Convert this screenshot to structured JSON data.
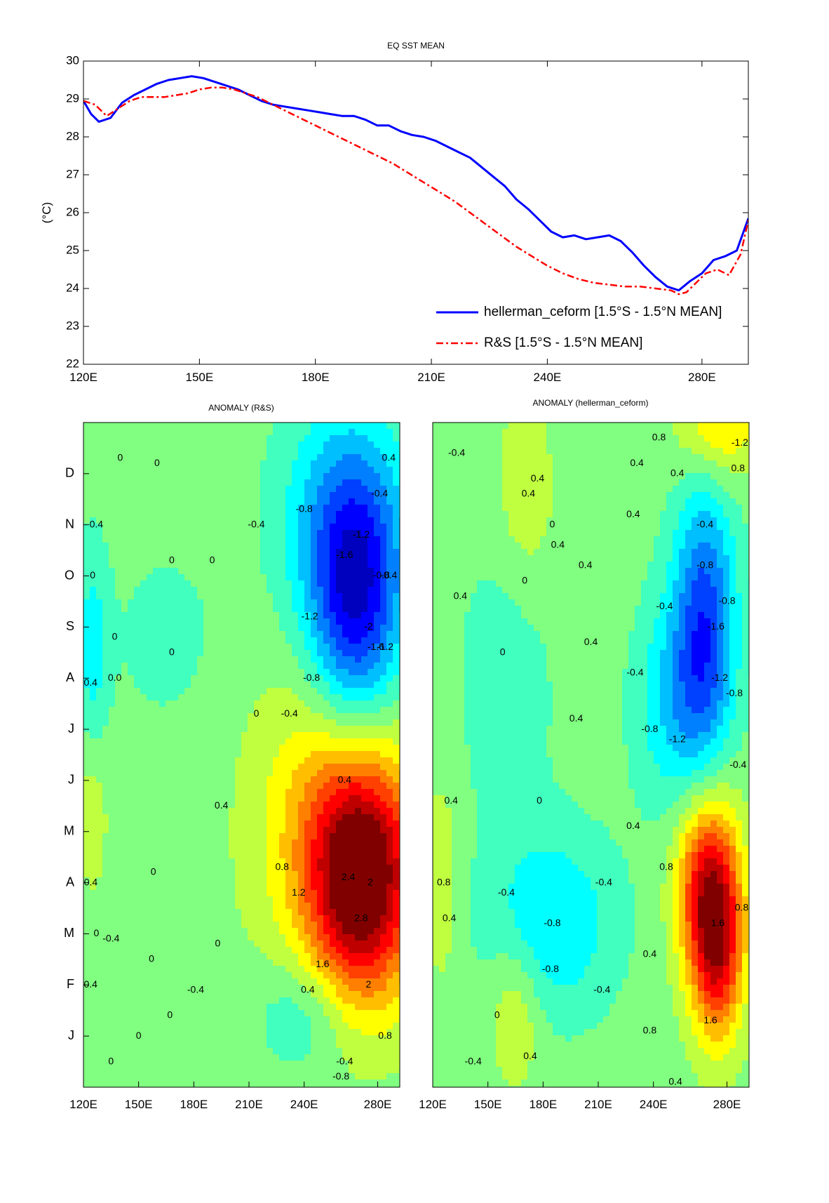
{
  "chart_data": [
    {
      "type": "line",
      "title": "EQ SST MEAN",
      "ylabel": "(°C)",
      "xlabel": "",
      "xlim": [
        120,
        292
      ],
      "ylim": [
        22,
        30
      ],
      "x_ticks": [
        120,
        150,
        180,
        210,
        240,
        280
      ],
      "x_tick_labels": [
        "120E",
        "150E",
        "180E",
        "210E",
        "240E",
        "280E"
      ],
      "y_ticks": [
        22,
        23,
        24,
        25,
        26,
        27,
        28,
        29,
        30
      ],
      "y_tick_labels": [
        "22",
        "23",
        "24",
        "25",
        "26",
        "27",
        "28",
        "29",
        "30"
      ],
      "legend_position": "bottom-right",
      "series": [
        {
          "name": "hellerman_ceform [1.5°S - 1.5°N MEAN]",
          "color": "#0000ff",
          "style": "solid",
          "x": [
            120,
            122,
            124,
            127,
            130,
            133,
            136,
            139,
            142,
            145,
            148,
            151,
            154,
            157,
            160,
            163,
            166,
            169,
            172,
            175,
            178,
            181,
            184,
            187,
            190,
            193,
            196,
            199,
            202,
            205,
            208,
            211,
            214,
            217,
            220,
            223,
            226,
            229,
            232,
            235,
            238,
            241,
            244,
            247,
            250,
            253,
            256,
            259,
            262,
            265,
            268,
            271,
            274,
            277,
            280,
            283,
            286,
            289,
            292
          ],
          "y": [
            28.95,
            28.6,
            28.4,
            28.5,
            28.9,
            29.1,
            29.25,
            29.4,
            29.5,
            29.55,
            29.6,
            29.55,
            29.45,
            29.35,
            29.25,
            29.1,
            28.95,
            28.85,
            28.8,
            28.75,
            28.7,
            28.65,
            28.6,
            28.55,
            28.55,
            28.45,
            28.3,
            28.3,
            28.15,
            28.05,
            28.0,
            27.9,
            27.75,
            27.6,
            27.45,
            27.2,
            26.95,
            26.7,
            26.35,
            26.1,
            25.8,
            25.5,
            25.35,
            25.4,
            25.3,
            25.35,
            25.4,
            25.25,
            24.95,
            24.6,
            24.3,
            24.05,
            23.95,
            24.2,
            24.4,
            24.75,
            24.85,
            25.0,
            25.85
          ]
        },
        {
          "name": "R&S [1.5°S - 1.5°N MEAN]",
          "color": "#ff0000",
          "style": "dashdot",
          "x": [
            120,
            123,
            126,
            129,
            132,
            135,
            138,
            141,
            144,
            147,
            150,
            153,
            156,
            159,
            162,
            165,
            168,
            171,
            174,
            177,
            180,
            184,
            188,
            192,
            196,
            200,
            204,
            208,
            212,
            216,
            220,
            224,
            228,
            232,
            236,
            240,
            244,
            248,
            252,
            256,
            260,
            264,
            268,
            272,
            274,
            276,
            278,
            281,
            284,
            287,
            290,
            292
          ],
          "y": [
            28.95,
            28.85,
            28.55,
            28.75,
            28.95,
            29.05,
            29.05,
            29.05,
            29.1,
            29.15,
            29.25,
            29.3,
            29.3,
            29.25,
            29.15,
            29.05,
            28.9,
            28.75,
            28.6,
            28.45,
            28.3,
            28.1,
            27.9,
            27.7,
            27.5,
            27.3,
            27.05,
            26.8,
            26.55,
            26.3,
            26.0,
            25.7,
            25.4,
            25.1,
            24.85,
            24.6,
            24.4,
            24.25,
            24.15,
            24.1,
            24.05,
            24.05,
            24.0,
            23.95,
            23.85,
            23.9,
            24.1,
            24.4,
            24.5,
            24.35,
            24.9,
            25.8
          ]
        }
      ]
    },
    {
      "type": "heatmap",
      "title": "ANOMALY (R&S)",
      "xlim": [
        120,
        292
      ],
      "x_tick_labels": [
        "120E",
        "150E",
        "180E",
        "210E",
        "240E",
        "280E"
      ],
      "y_tick_labels": [
        "J",
        "F",
        "M",
        "A",
        "M",
        "J",
        "J",
        "A",
        "S",
        "O",
        "N",
        "D"
      ],
      "colorscale": "jet",
      "vlim": [
        -3.2,
        3.2
      ],
      "features": [
        {
          "lon": 272,
          "month": 3.0,
          "value": 3.0,
          "sigma_lon": 20,
          "sigma_month": 1.6
        },
        {
          "lon": 258,
          "month": 4.2,
          "value": 1.3,
          "sigma_lon": 30,
          "sigma_month": 2.2
        },
        {
          "lon": 268,
          "month": 8.3,
          "value": -2.4,
          "sigma_lon": 18,
          "sigma_month": 1.8
        },
        {
          "lon": 262,
          "month": 10.2,
          "value": -1.1,
          "sigma_lon": 25,
          "sigma_month": 1.6
        },
        {
          "lon": 125,
          "month": 7.5,
          "value": -0.8,
          "sigma_lon": 6,
          "sigma_month": 1.5
        },
        {
          "lon": 125,
          "month": 4.5,
          "value": 0.5,
          "sigma_lon": 6,
          "sigma_month": 1.2
        },
        {
          "lon": 165,
          "month": 7.8,
          "value": -0.3,
          "sigma_lon": 25,
          "sigma_month": 1.5
        },
        {
          "lon": 240,
          "month": 0.4,
          "value": -0.7,
          "sigma_lon": 18,
          "sigma_month": 0.8
        }
      ],
      "contour_labels": [
        {
          "text": "0",
          "lon": 140,
          "month": 11.3
        },
        {
          "text": "0",
          "lon": 160,
          "month": 11.2
        },
        {
          "text": "0.4",
          "lon": 286,
          "month": 11.3
        },
        {
          "text": "-0.4",
          "lon": 214,
          "month": 10.0
        },
        {
          "text": "-0.8",
          "lon": 240,
          "month": 10.3
        },
        {
          "text": "-0.4",
          "lon": 281,
          "month": 10.6
        },
        {
          "text": "0.4",
          "lon": 127,
          "month": 10.0
        },
        {
          "text": "-1.2",
          "lon": 271,
          "month": 9.8
        },
        {
          "text": "-1.6",
          "lon": 262,
          "month": 9.4
        },
        {
          "text": "0",
          "lon": 168,
          "month": 9.3
        },
        {
          "text": "0",
          "lon": 190,
          "month": 9.3
        },
        {
          "text": "0",
          "lon": 125,
          "month": 9.0
        },
        {
          "text": "-0.8",
          "lon": 282,
          "month": 9.0
        },
        {
          "text": "-0.4",
          "lon": 286,
          "month": 9.0
        },
        {
          "text": "-1.2",
          "lon": 243,
          "month": 8.2
        },
        {
          "text": "-2",
          "lon": 275,
          "month": 8.0
        },
        {
          "text": "-1.6",
          "lon": 279,
          "month": 7.6
        },
        {
          "text": "-1.2",
          "lon": 284,
          "month": 7.6
        },
        {
          "text": "0",
          "lon": 137,
          "month": 7.8
        },
        {
          "text": "0",
          "lon": 168,
          "month": 7.5
        },
        {
          "text": "0.0",
          "lon": 137,
          "month": 7.0
        },
        {
          "text": "-0.4",
          "lon": 123,
          "month": 6.9
        },
        {
          "text": "-0.8",
          "lon": 244,
          "month": 7.0
        },
        {
          "text": "-0.4",
          "lon": 232,
          "month": 6.3
        },
        {
          "text": "0",
          "lon": 214,
          "month": 6.3
        },
        {
          "text": "0.4",
          "lon": 262,
          "month": 5.0
        },
        {
          "text": "0.4",
          "lon": 195,
          "month": 4.5
        },
        {
          "text": "0",
          "lon": 158,
          "month": 3.2
        },
        {
          "text": "0.4",
          "lon": 124,
          "month": 3.0
        },
        {
          "text": "0.8",
          "lon": 228,
          "month": 3.3
        },
        {
          "text": "2.4",
          "lon": 264,
          "month": 3.1
        },
        {
          "text": "1.2",
          "lon": 237,
          "month": 2.8
        },
        {
          "text": "2",
          "lon": 276,
          "month": 3.0
        },
        {
          "text": "2.8",
          "lon": 271,
          "month": 2.3
        },
        {
          "text": "0",
          "lon": 127,
          "month": 2.0
        },
        {
          "text": "-0.4",
          "lon": 135,
          "month": 1.9
        },
        {
          "text": "0",
          "lon": 193,
          "month": 1.8
        },
        {
          "text": "1.6",
          "lon": 250,
          "month": 1.4
        },
        {
          "text": "2",
          "lon": 275,
          "month": 1.0
        },
        {
          "text": "0.4",
          "lon": 242,
          "month": 0.9
        },
        {
          "text": "-0.4",
          "lon": 123,
          "month": 1.0
        },
        {
          "text": "0",
          "lon": 157,
          "month": 1.5
        },
        {
          "text": "-0.4",
          "lon": 181,
          "month": 0.9
        },
        {
          "text": "0",
          "lon": 167,
          "month": 0.4
        },
        {
          "text": "0",
          "lon": 150,
          "month": 0.0
        },
        {
          "text": "0.8",
          "lon": 284,
          "month": 0.0
        },
        {
          "text": "-0.4",
          "lon": 262,
          "month": -0.5
        },
        {
          "text": "-0.8",
          "lon": 260,
          "month": -0.8
        },
        {
          "text": "0",
          "lon": 135,
          "month": -0.5
        }
      ]
    },
    {
      "type": "heatmap",
      "title": "ANOMALY (hellerman_ceform)",
      "xlim": [
        120,
        292
      ],
      "x_tick_labels": [
        "120E",
        "150E",
        "180E",
        "210E",
        "240E",
        "280E"
      ],
      "y_tick_labels": [],
      "colorscale": "jet",
      "vlim": [
        -3.2,
        3.2
      ],
      "features": [
        {
          "lon": 270,
          "month": 3.0,
          "value": 2.5,
          "sigma_lon": 12,
          "sigma_month": 1.3
        },
        {
          "lon": 275,
          "month": 1.5,
          "value": 2.0,
          "sigma_lon": 10,
          "sigma_month": 1.2
        },
        {
          "lon": 268,
          "month": 8.0,
          "value": -2.0,
          "sigma_lon": 12,
          "sigma_month": 2.0
        },
        {
          "lon": 250,
          "month": 6.5,
          "value": -0.9,
          "sigma_lon": 15,
          "sigma_month": 1.5
        },
        {
          "lon": 185,
          "month": 2.2,
          "value": -1.0,
          "sigma_lon": 25,
          "sigma_month": 1.3
        },
        {
          "lon": 160,
          "month": 7.0,
          "value": -0.5,
          "sigma_lon": 18,
          "sigma_month": 2.0
        },
        {
          "lon": 165,
          "month": 0.5,
          "value": 0.7,
          "sigma_lon": 10,
          "sigma_month": 1.0
        },
        {
          "lon": 170,
          "month": 10.5,
          "value": 0.5,
          "sigma_lon": 12,
          "sigma_month": 1.5
        },
        {
          "lon": 275,
          "month": 12.0,
          "value": 1.2,
          "sigma_lon": 15,
          "sigma_month": 0.8
        },
        {
          "lon": 125,
          "month": 3.0,
          "value": 0.5,
          "sigma_lon": 6,
          "sigma_month": 1.5
        }
      ],
      "contour_labels": [
        {
          "text": "0.8",
          "lon": 243,
          "month": 11.7
        },
        {
          "text": "-1.2",
          "lon": 287,
          "month": 11.6
        },
        {
          "text": "0.4",
          "lon": 231,
          "month": 11.2
        },
        {
          "text": "0.8",
          "lon": 286,
          "month": 11.1
        },
        {
          "text": "0.4",
          "lon": 253,
          "month": 11.0
        },
        {
          "text": "0.4",
          "lon": 177,
          "month": 10.9
        },
        {
          "text": "-0.4",
          "lon": 133,
          "month": 11.4
        },
        {
          "text": "0.4",
          "lon": 172,
          "month": 10.6
        },
        {
          "text": "0.4",
          "lon": 229,
          "month": 10.2
        },
        {
          "text": "0",
          "lon": 185,
          "month": 10.0
        },
        {
          "text": "-0.4",
          "lon": 268,
          "month": 10.0
        },
        {
          "text": "0.4",
          "lon": 188,
          "month": 9.6
        },
        {
          "text": "0.4",
          "lon": 203,
          "month": 9.2
        },
        {
          "text": "-0.8",
          "lon": 268,
          "month": 9.2
        },
        {
          "text": "0",
          "lon": 170,
          "month": 8.9
        },
        {
          "text": "0.4",
          "lon": 135,
          "month": 8.6
        },
        {
          "text": "-0.4",
          "lon": 246,
          "month": 8.4
        },
        {
          "text": "-0.8",
          "lon": 280,
          "month": 8.5
        },
        {
          "text": "-1.6",
          "lon": 274,
          "month": 8.0
        },
        {
          "text": "0",
          "lon": 158,
          "month": 7.5
        },
        {
          "text": "0.4",
          "lon": 206,
          "month": 7.7
        },
        {
          "text": "-0.4",
          "lon": 230,
          "month": 7.1
        },
        {
          "text": "-1.2",
          "lon": 276,
          "month": 7.0
        },
        {
          "text": "-0.8",
          "lon": 284,
          "month": 6.7
        },
        {
          "text": "0.4",
          "lon": 198,
          "month": 6.2
        },
        {
          "text": "-0.8",
          "lon": 238,
          "month": 6.0
        },
        {
          "text": "-1.2",
          "lon": 253,
          "month": 5.8
        },
        {
          "text": "-0.4",
          "lon": 286,
          "month": 5.3
        },
        {
          "text": "0.4",
          "lon": 130,
          "month": 4.6
        },
        {
          "text": "0",
          "lon": 178,
          "month": 4.6
        },
        {
          "text": "0.4",
          "lon": 229,
          "month": 4.1
        },
        {
          "text": "0.8",
          "lon": 247,
          "month": 3.3
        },
        {
          "text": "-0.4",
          "lon": 213,
          "month": 3.0
        },
        {
          "text": "0.8",
          "lon": 126,
          "month": 3.0
        },
        {
          "text": "-0.4",
          "lon": 160,
          "month": 2.8
        },
        {
          "text": "0.4",
          "lon": 129,
          "month": 2.3
        },
        {
          "text": "-0.8",
          "lon": 185,
          "month": 2.2
        },
        {
          "text": "1.6",
          "lon": 275,
          "month": 2.2
        },
        {
          "text": "0.8",
          "lon": 288,
          "month": 2.5
        },
        {
          "text": "-0.8",
          "lon": 184,
          "month": 1.3
        },
        {
          "text": "0.4",
          "lon": 238,
          "month": 1.6
        },
        {
          "text": "-0.4",
          "lon": 212,
          "month": 0.9
        },
        {
          "text": "0",
          "lon": 155,
          "month": 0.4
        },
        {
          "text": "0.8",
          "lon": 238,
          "month": 0.1
        },
        {
          "text": "1.6",
          "lon": 271,
          "month": 0.3
        },
        {
          "text": "-0.4",
          "lon": 142,
          "month": -0.5
        },
        {
          "text": "0.4",
          "lon": 173,
          "month": -0.4
        },
        {
          "text": "0.4",
          "lon": 252,
          "month": -0.9
        }
      ]
    }
  ]
}
